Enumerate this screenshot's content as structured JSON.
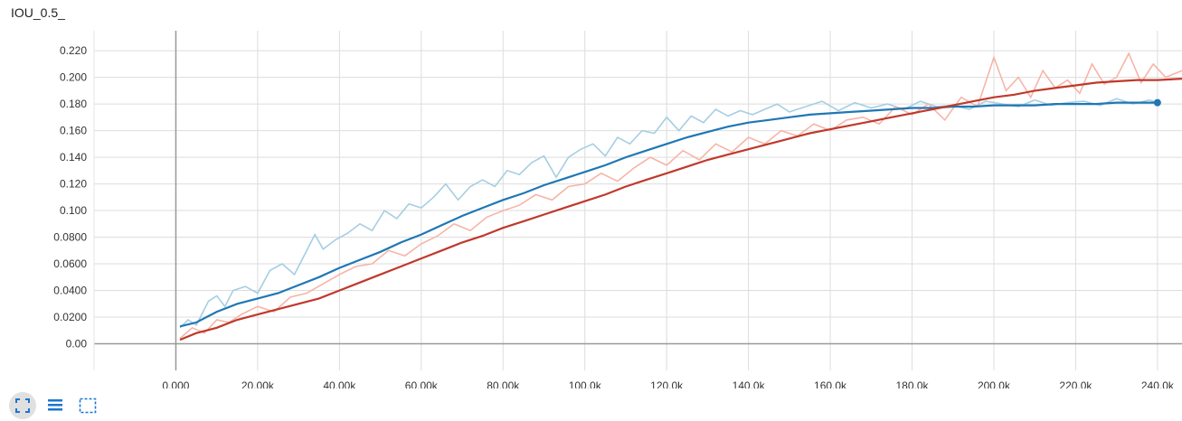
{
  "card": {
    "title": "IOU_0.5_"
  },
  "colors": {
    "series_1": "#1f77b4",
    "series_2": "#c0392b",
    "series_1_raw": "#a6cee3",
    "series_2_raw": "#f6b5a8",
    "grid": "#dddddd",
    "axis": "#999999"
  },
  "toolbar": {
    "buttons": [
      {
        "name": "fit-domain-button",
        "icon": "fit-to-data-icon"
      },
      {
        "name": "toggle-log-scale-button",
        "icon": "list-lines-icon"
      },
      {
        "name": "expand-chart-button",
        "icon": "dashed-box-icon"
      }
    ]
  },
  "chart_data": {
    "type": "line",
    "xlabel": "",
    "ylabel": "",
    "xlim": [
      -20000,
      246000
    ],
    "ylim": [
      -0.02,
      0.235
    ],
    "x_ticks": [
      0,
      20000,
      40000,
      60000,
      80000,
      100000,
      120000,
      140000,
      160000,
      180000,
      200000,
      220000,
      240000
    ],
    "x_tick_labels": [
      "0.000",
      "20.00k",
      "40.00k",
      "60.00k",
      "80.00k",
      "100.0k",
      "120.0k",
      "140.0k",
      "160.0k",
      "180.0k",
      "200.0k",
      "220.0k",
      "240.0k"
    ],
    "y_ticks": [
      0,
      0.02,
      0.04,
      0.06,
      0.08,
      0.1,
      0.12,
      0.14,
      0.16,
      0.18,
      0.2,
      0.22
    ],
    "y_tick_labels": [
      "0.00",
      "0.0200",
      "0.0400",
      "0.0600",
      "0.0800",
      "0.100",
      "0.120",
      "0.140",
      "0.160",
      "0.180",
      "0.200",
      "0.220"
    ],
    "grid": true,
    "series": [
      {
        "smoothed": {
          "x": [
            1000,
            5000,
            10000,
            15000,
            20000,
            25000,
            30000,
            35000,
            40000,
            45000,
            50000,
            55000,
            60000,
            65000,
            70000,
            75000,
            80000,
            85000,
            90000,
            95000,
            100000,
            105000,
            110000,
            115000,
            120000,
            125000,
            130000,
            135000,
            140000,
            145000,
            150000,
            155000,
            160000,
            165000,
            170000,
            175000,
            180000,
            185000,
            190000,
            195000,
            200000,
            205000,
            210000,
            215000,
            220000,
            225000,
            230000,
            235000,
            240000
          ],
          "y": [
            0.013,
            0.016,
            0.024,
            0.03,
            0.034,
            0.038,
            0.044,
            0.05,
            0.057,
            0.063,
            0.069,
            0.076,
            0.082,
            0.089,
            0.096,
            0.102,
            0.108,
            0.113,
            0.119,
            0.124,
            0.129,
            0.134,
            0.14,
            0.145,
            0.15,
            0.155,
            0.159,
            0.163,
            0.166,
            0.168,
            0.17,
            0.172,
            0.173,
            0.174,
            0.175,
            0.176,
            0.177,
            0.177,
            0.178,
            0.178,
            0.179,
            0.179,
            0.179,
            0.18,
            0.18,
            0.18,
            0.181,
            0.181,
            0.181
          ]
        },
        "raw": {
          "x": [
            1000,
            3000,
            5000,
            8000,
            10000,
            12000,
            14000,
            17000,
            20000,
            23000,
            26000,
            29000,
            32000,
            34000,
            36000,
            39000,
            42000,
            45000,
            48000,
            51000,
            54000,
            57000,
            60000,
            63000,
            66000,
            69000,
            72000,
            75000,
            78000,
            81000,
            84000,
            87000,
            90000,
            93000,
            96000,
            99000,
            102000,
            105000,
            108000,
            111000,
            114000,
            117000,
            120000,
            123000,
            126000,
            129000,
            132000,
            135000,
            138000,
            141000,
            144000,
            147000,
            150000,
            154000,
            158000,
            162000,
            166000,
            170000,
            174000,
            178000,
            182000,
            186000,
            190000,
            194000,
            198000,
            202000,
            206000,
            210000,
            214000,
            218000,
            222000,
            226000,
            230000,
            234000,
            238000,
            240000
          ],
          "y": [
            0.012,
            0.018,
            0.014,
            0.032,
            0.036,
            0.028,
            0.04,
            0.043,
            0.038,
            0.055,
            0.06,
            0.052,
            0.07,
            0.082,
            0.071,
            0.078,
            0.083,
            0.09,
            0.085,
            0.1,
            0.094,
            0.105,
            0.102,
            0.11,
            0.12,
            0.108,
            0.118,
            0.123,
            0.118,
            0.13,
            0.127,
            0.136,
            0.141,
            0.125,
            0.14,
            0.146,
            0.15,
            0.141,
            0.155,
            0.15,
            0.16,
            0.158,
            0.17,
            0.16,
            0.171,
            0.166,
            0.176,
            0.171,
            0.175,
            0.172,
            0.176,
            0.18,
            0.174,
            0.178,
            0.182,
            0.175,
            0.181,
            0.177,
            0.18,
            0.176,
            0.182,
            0.178,
            0.179,
            0.176,
            0.182,
            0.18,
            0.178,
            0.183,
            0.179,
            0.181,
            0.182,
            0.179,
            0.184,
            0.18,
            0.183,
            0.181
          ]
        }
      },
      {
        "smoothed": {
          "x": [
            1000,
            5000,
            10000,
            15000,
            20000,
            25000,
            30000,
            35000,
            40000,
            45000,
            50000,
            55000,
            60000,
            65000,
            70000,
            75000,
            80000,
            85000,
            90000,
            95000,
            100000,
            105000,
            110000,
            115000,
            120000,
            125000,
            130000,
            135000,
            140000,
            145000,
            150000,
            155000,
            160000,
            165000,
            170000,
            175000,
            180000,
            185000,
            190000,
            195000,
            200000,
            205000,
            210000,
            215000,
            220000,
            225000,
            230000,
            235000,
            240000,
            246000
          ],
          "y": [
            0.003,
            0.008,
            0.012,
            0.018,
            0.022,
            0.026,
            0.03,
            0.034,
            0.04,
            0.046,
            0.052,
            0.058,
            0.064,
            0.07,
            0.076,
            0.081,
            0.087,
            0.092,
            0.097,
            0.102,
            0.107,
            0.112,
            0.118,
            0.123,
            0.128,
            0.133,
            0.138,
            0.142,
            0.146,
            0.15,
            0.154,
            0.158,
            0.161,
            0.164,
            0.167,
            0.17,
            0.173,
            0.176,
            0.179,
            0.182,
            0.185,
            0.187,
            0.19,
            0.192,
            0.194,
            0.196,
            0.197,
            0.198,
            0.198,
            0.199
          ]
        },
        "raw": {
          "x": [
            1000,
            4000,
            7000,
            10000,
            13000,
            16000,
            20000,
            24000,
            28000,
            32000,
            36000,
            40000,
            44000,
            48000,
            52000,
            56000,
            60000,
            64000,
            68000,
            72000,
            76000,
            80000,
            84000,
            88000,
            92000,
            96000,
            100000,
            104000,
            108000,
            112000,
            116000,
            120000,
            124000,
            128000,
            132000,
            136000,
            140000,
            144000,
            148000,
            152000,
            156000,
            160000,
            164000,
            168000,
            172000,
            176000,
            180000,
            184000,
            188000,
            192000,
            196000,
            200000,
            203000,
            206000,
            209000,
            212000,
            215000,
            218000,
            221000,
            224000,
            227000,
            230000,
            233000,
            236000,
            239000,
            242000,
            246000
          ],
          "y": [
            0.004,
            0.012,
            0.008,
            0.018,
            0.016,
            0.022,
            0.028,
            0.024,
            0.035,
            0.038,
            0.045,
            0.052,
            0.058,
            0.06,
            0.07,
            0.066,
            0.075,
            0.081,
            0.09,
            0.085,
            0.095,
            0.1,
            0.104,
            0.112,
            0.108,
            0.118,
            0.12,
            0.128,
            0.122,
            0.132,
            0.14,
            0.134,
            0.145,
            0.138,
            0.15,
            0.144,
            0.155,
            0.15,
            0.16,
            0.156,
            0.165,
            0.16,
            0.168,
            0.17,
            0.165,
            0.178,
            0.172,
            0.18,
            0.168,
            0.185,
            0.178,
            0.215,
            0.19,
            0.2,
            0.185,
            0.205,
            0.192,
            0.198,
            0.188,
            0.21,
            0.195,
            0.2,
            0.218,
            0.196,
            0.21,
            0.2,
            0.205
          ]
        }
      }
    ]
  }
}
